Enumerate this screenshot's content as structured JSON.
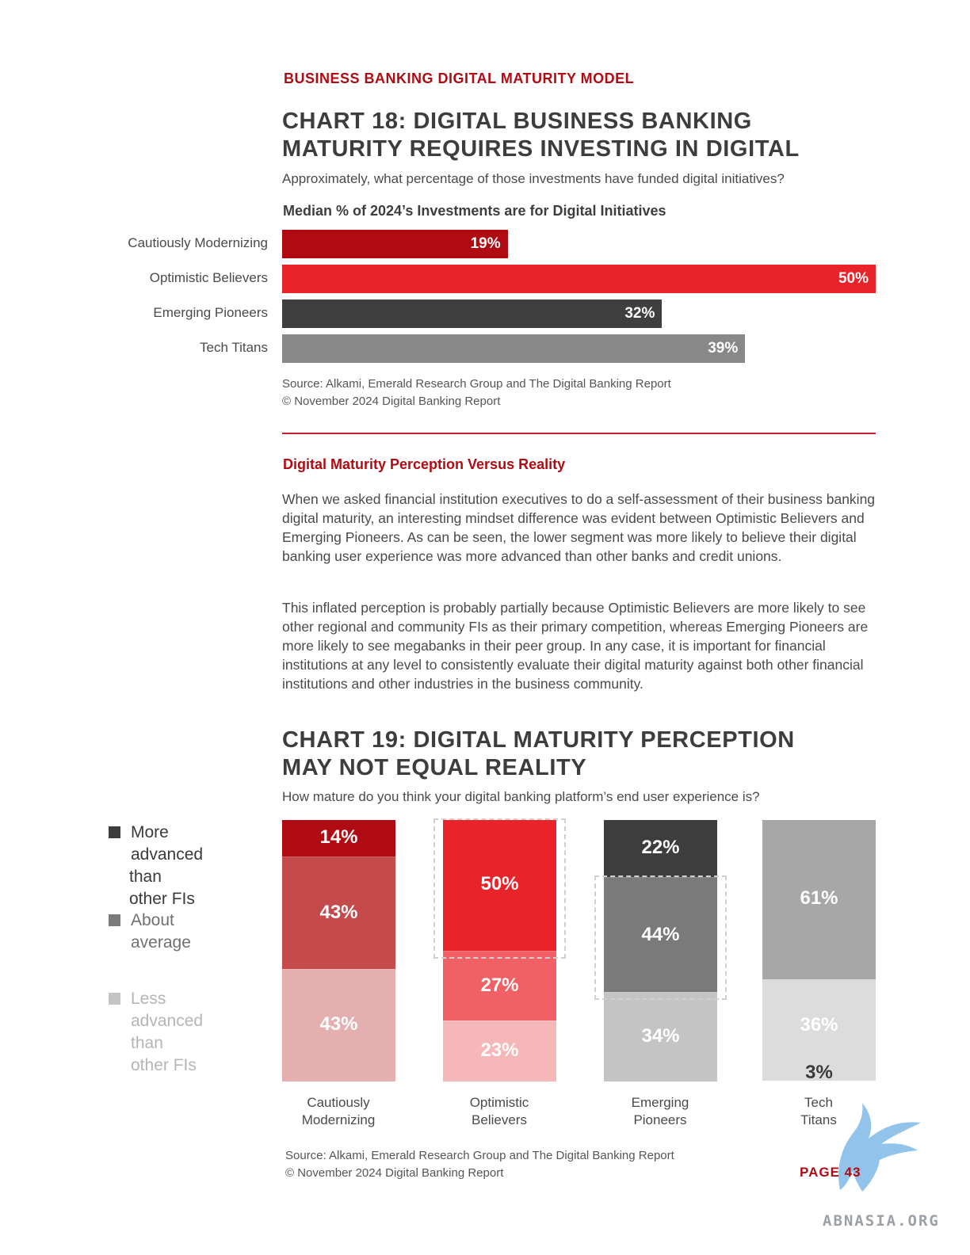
{
  "header": {
    "section_label": "BUSINESS BANKING DIGITAL MATURITY MODEL"
  },
  "chart18": {
    "title_line1": "CHART 18: DIGITAL BUSINESS BANKING",
    "title_line2": "MATURITY REQUIRES INVESTING IN DIGITAL",
    "question": "Approximately, what percentage of those investments have funded digital initiatives?",
    "subtitle": "Median % of 2024’s Investments are for Digital Initiatives",
    "source_line1": "Source: Alkami, Emerald Research Group and The Digital Banking Report",
    "source_line2": "© November 2024 Digital Banking Report"
  },
  "article": {
    "heading": "Digital Maturity Perception Versus Reality",
    "paragraph1": "When we asked financial institution executives to do a self-assessment of their business banking digital maturity, an interesting mindset difference was evident between Optimistic Believers and Emerging Pioneers. As can be seen, the lower segment was more likely to believe their digital banking user experience was more advanced than other banks and credit unions.",
    "paragraph2": "This inflated perception is probably partially because Optimistic Believers are more likely to see other regional and community FIs as their primary competition, whereas Emerging Pioneers are more likely to see megabanks in their peer group. In any case, it is important for financial institutions at any level to consistently evaluate their digital maturity against both other financial institutions and other industries in the business community."
  },
  "chart19": {
    "title_line1": "CHART 19: DIGITAL MATURITY PERCEPTION",
    "title_line2": "MAY NOT EQUAL REALITY",
    "question": "How mature do you think your digital banking platform’s end user experience is?",
    "legend": [
      {
        "line1": "More advanced",
        "line2": "than other FIs",
        "color": "#3d3d3d"
      },
      {
        "line1": "About",
        "line2": "average",
        "color": "#7a7a7a"
      },
      {
        "line1": "Less advanced",
        "line2": "than other FIs",
        "color": "#c4c4c4"
      }
    ],
    "source_line1": "Source: Alkami, Emerald Research Group and The Digital Banking Report",
    "source_line2": "© November 2024 Digital Banking Report"
  },
  "footer": {
    "page": "PAGE 43",
    "watermark": "ABNASIA.ORG"
  },
  "chart_data": [
    {
      "type": "bar",
      "orientation": "horizontal",
      "title": "CHART 18: DIGITAL BUSINESS BANKING MATURITY REQUIRES INVESTING IN DIGITAL",
      "subtitle": "Median % of 2024’s Investments are for Digital Initiatives",
      "categories": [
        "Cautiously Modernizing",
        "Optimistic Believers",
        "Emerging Pioneers",
        "Tech Titans"
      ],
      "values": [
        19,
        50,
        32,
        39
      ],
      "value_labels": [
        "19%",
        "50%",
        "32%",
        "39%"
      ],
      "colors": [
        "#b00a12",
        "#e8232a",
        "#3f3f3f",
        "#888888"
      ],
      "xlim": [
        0,
        50
      ],
      "grid": false
    },
    {
      "type": "bar",
      "orientation": "vertical",
      "stacked": true,
      "title": "CHART 19: DIGITAL MATURITY PERCEPTION MAY NOT EQUAL REALITY",
      "categories": [
        "Cautiously Modernizing",
        "Optimistic Believers",
        "Emerging Pioneers",
        "Tech Titans"
      ],
      "category_lines": [
        [
          "Cautiously",
          "Modernizing"
        ],
        [
          "Optimistic",
          "Believers"
        ],
        [
          "Emerging",
          "Pioneers"
        ],
        [
          "Tech",
          "Titans"
        ]
      ],
      "series": [
        {
          "name": "More advanced than other FIs",
          "values": [
            14,
            50,
            22,
            0
          ],
          "labels": [
            "14%",
            "50%",
            "22%",
            ""
          ]
        },
        {
          "name": "About average",
          "values": [
            43,
            27,
            44,
            61
          ],
          "labels": [
            "43%",
            "27%",
            "44%",
            "61%"
          ]
        },
        {
          "name": "Less advanced than other FIs",
          "values": [
            43,
            23,
            34,
            36
          ],
          "labels": [
            "43%",
            "23%",
            "34%",
            "36%"
          ]
        },
        {
          "name": "",
          "values": [
            0,
            0,
            0,
            3
          ],
          "labels": [
            "",
            "",
            "",
            "3%"
          ]
        }
      ],
      "colors": [
        [
          "#b00a12",
          "#c44a4c",
          "#e5afaf"
        ],
        [
          "#e8232a",
          "#f06065",
          "#f6b7b9"
        ],
        [
          "#3d3d3d",
          "#7a7a7a",
          "#c4c4c4"
        ],
        [
          "#878787",
          "#a7a7a7",
          "#dcdcdc"
        ]
      ],
      "highlighted": [
        {
          "category": "Optimistic Believers",
          "series": "More advanced than other FIs"
        },
        {
          "category": "Emerging Pioneers",
          "series": "About average"
        }
      ],
      "ylim": [
        0,
        100
      ],
      "legend_placement": "left",
      "grid": false
    }
  ]
}
